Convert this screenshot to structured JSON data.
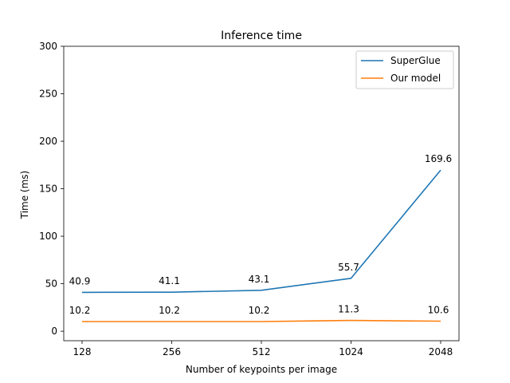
{
  "chart_data": {
    "type": "line",
    "title": "Inference time",
    "xlabel": "Number of keypoints per image",
    "ylabel": "Time (ms)",
    "categories": [
      "128",
      "256",
      "512",
      "1024",
      "2048"
    ],
    "ylim": [
      -10,
      300
    ],
    "yticks": [
      0,
      50,
      100,
      150,
      200,
      250,
      300
    ],
    "grid": false,
    "legend_position": "top-right",
    "series": [
      {
        "name": "SuperGlue",
        "color": "#1f77b4",
        "values": [
          40.9,
          41.1,
          43.1,
          55.7,
          169.6
        ],
        "labels": [
          "40.9",
          "41.1",
          "43.1",
          "55.7",
          "169.6"
        ]
      },
      {
        "name": "Our model",
        "color": "#ff7f0e",
        "values": [
          10.2,
          10.2,
          10.2,
          11.3,
          10.6
        ],
        "labels": [
          "10.2",
          "10.2",
          "10.2",
          "11.3",
          "10.6"
        ]
      }
    ]
  }
}
